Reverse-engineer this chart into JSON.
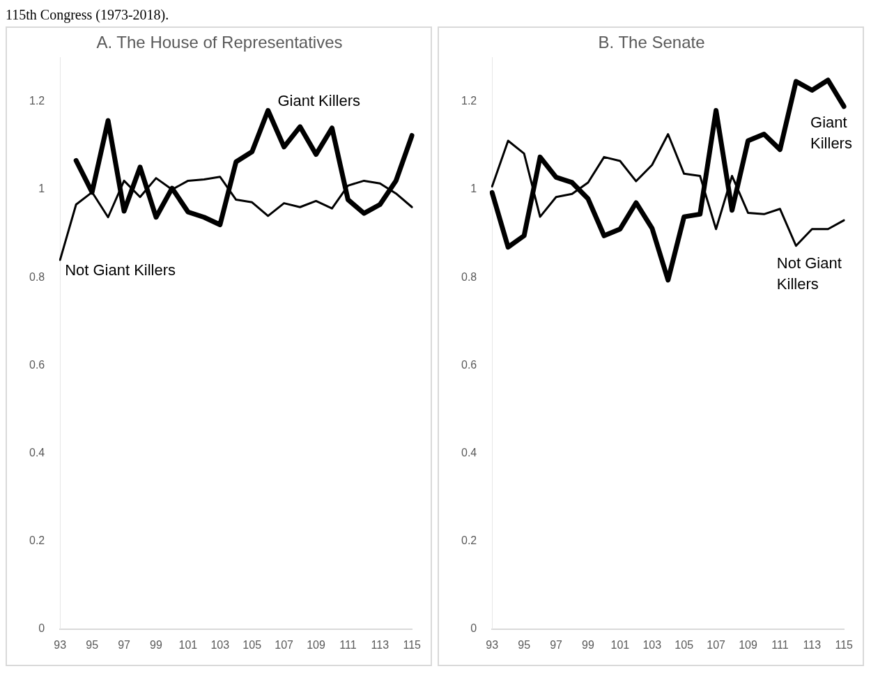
{
  "chart_data": [
    {
      "type": "line",
      "title": "A. The House of Representatives",
      "annotations": [
        "115th Congress (1973-2018)."
      ],
      "categories": [
        "93",
        null,
        "95",
        null,
        "97",
        null,
        "99",
        null,
        "101",
        null,
        "103",
        null,
        "105",
        null,
        "107",
        null,
        "109",
        null,
        "111",
        null,
        "113",
        null,
        "115"
      ],
      "series": [
        {
          "name": "Giant Killers",
          "color": "#000000",
          "values": [
            null,
            1.066,
            0.994,
            1.157,
            0.951,
            1.051,
            0.937,
            1.003,
            0.949,
            0.937,
            0.92,
            1.063,
            1.086,
            1.18,
            1.097,
            1.143,
            1.08,
            1.14,
            0.977,
            0.946,
            0.966,
            1.02,
            1.123
          ]
        },
        {
          "name": "Not Giant Killers",
          "color": "#000000",
          "values": [
            0.84,
            0.966,
            0.994,
            0.937,
            1.02,
            0.983,
            1.026,
            1.0,
            1.02,
            1.023,
            1.029,
            0.977,
            0.971,
            0.94,
            0.969,
            0.96,
            0.974,
            0.957,
            1.009,
            1.02,
            1.014,
            0.991,
            0.96
          ]
        }
      ],
      "ylim": [
        0,
        1.3
      ],
      "yticks": [
        0,
        0.2,
        0.4,
        0.6,
        0.8,
        1,
        1.2
      ],
      "grid": false,
      "legend": false,
      "marker": "none",
      "line_style": "solid"
    },
    {
      "type": "line",
      "title": "B. The Senate",
      "categories": [
        "93",
        null,
        "95",
        null,
        "97",
        null,
        "99",
        null,
        "101",
        null,
        "103",
        null,
        "105",
        null,
        "107",
        null,
        "109",
        null,
        "111",
        null,
        "113",
        null,
        "115"
      ],
      "series": [
        {
          "name": "Giant Killers",
          "color": "#000000",
          "values": [
            0.993,
            0.869,
            0.895,
            1.074,
            1.028,
            1.016,
            0.979,
            0.895,
            0.91,
            0.97,
            0.912,
            0.794,
            0.938,
            0.944,
            1.18,
            0.953,
            1.111,
            1.126,
            1.091,
            1.246,
            1.226,
            1.249,
            1.189
          ]
        },
        {
          "name": "Not Giant Killers",
          "color": "#000000",
          "values": [
            1.007,
            1.111,
            1.082,
            0.938,
            0.983,
            0.99,
            1.016,
            1.074,
            1.065,
            1.019,
            1.056,
            1.126,
            1.036,
            1.031,
            0.91,
            1.031,
            0.947,
            0.944,
            0.956,
            0.872,
            0.91,
            0.91,
            0.93
          ]
        }
      ],
      "ylim": [
        0,
        1.3
      ],
      "yticks": [
        0,
        0.2,
        0.4,
        0.6,
        0.8,
        1,
        1.2
      ],
      "grid": false,
      "legend": false,
      "marker": "none",
      "line_style": "solid"
    }
  ]
}
